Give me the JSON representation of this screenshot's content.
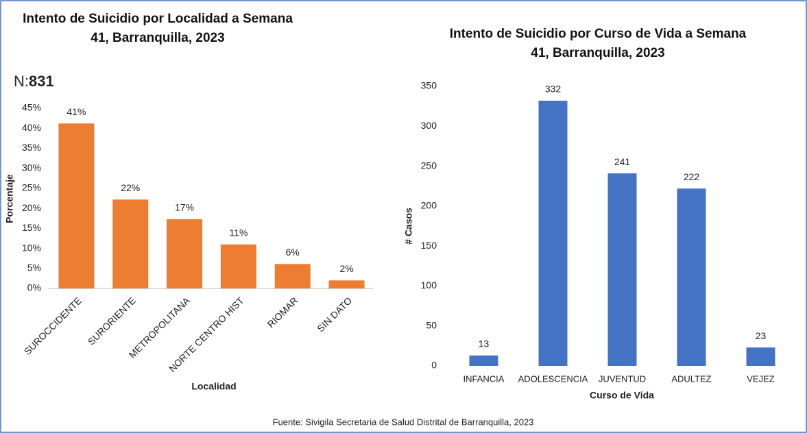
{
  "note": {
    "label": "N:",
    "value": 831
  },
  "source": "Fuente: Sivigila Secretaria de Salud Distrital de Barranquilla, 2023",
  "chart_data": [
    {
      "type": "bar",
      "title": "Intento de Suicidio por Localidad a Semana",
      "subtitle": "41, Barranquilla, 2023",
      "xlabel": "Localidad",
      "ylabel": "Porcentaje",
      "categories": [
        "SUROCCIDENTE",
        "SURORIENTE",
        "METROPOLITANA",
        "NORTE CENTRO HIST",
        "RIOMAR",
        "SIN DATO"
      ],
      "values": [
        41.2,
        22.2,
        17.3,
        11,
        6.1,
        2
      ],
      "value_labels": [
        "41%",
        "22%",
        "17%",
        "11%",
        "6%",
        "2%"
      ],
      "color": "#ed7d31",
      "ylim": [
        0,
        45
      ],
      "yticks": [
        {
          "value": 0,
          "label": "0%"
        },
        {
          "value": 5,
          "label": "5%"
        },
        {
          "value": 10,
          "label": "10%"
        },
        {
          "value": 15,
          "label": "15%"
        },
        {
          "value": 20,
          "label": "20%"
        },
        {
          "value": 25,
          "label": "25%"
        },
        {
          "value": 30,
          "label": "30%"
        },
        {
          "value": 35,
          "label": "35%"
        },
        {
          "value": 40,
          "label": "40%"
        },
        {
          "value": 45,
          "label": "45%"
        }
      ]
    },
    {
      "type": "bar",
      "title": "Intento de Suicidio por Curso de Vida a Semana",
      "subtitle": "41, Barranquilla,  2023",
      "xlabel": "Curso de Vida",
      "ylabel": "# Casos",
      "categories": [
        "INFANCIA",
        "ADOLESCENCIA",
        "JUVENTUD",
        "ADULTEZ",
        "VEJEZ"
      ],
      "values": [
        13,
        332,
        241,
        222,
        23
      ],
      "color": "#4472c4",
      "ylim": [
        0,
        350
      ],
      "yticks": [
        0,
        50,
        100,
        150,
        200,
        250,
        300,
        350
      ]
    }
  ]
}
